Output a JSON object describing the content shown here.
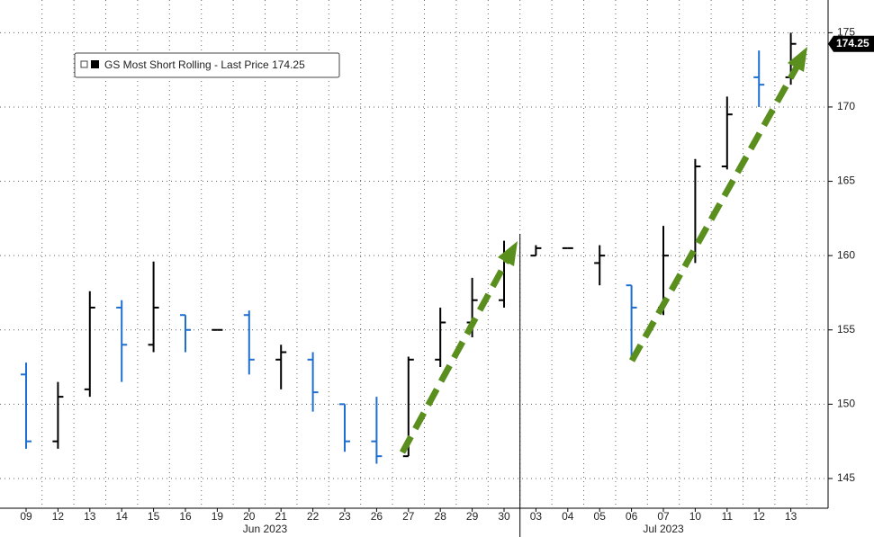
{
  "chart_data": {
    "type": "ohlc",
    "legend": "GS Most Short Rolling - Last Price 174.25",
    "categories": [
      "09",
      "12",
      "13",
      "14",
      "15",
      "16",
      "19",
      "20",
      "21",
      "22",
      "23",
      "26",
      "27",
      "28",
      "29",
      "30",
      "03",
      "04",
      "05",
      "06",
      "07",
      "10",
      "11",
      "12",
      "13"
    ],
    "months": [
      "Jun 2023",
      "Jul 2023"
    ],
    "open": [
      152,
      147.5,
      151,
      156.5,
      154,
      156,
      155,
      156,
      153,
      153,
      150,
      147.5,
      146.5,
      153,
      155.5,
      157,
      160,
      160.5,
      159.5,
      158,
      156.5,
      160,
      166,
      172,
      172
    ],
    "high": [
      152.8,
      151.5,
      157.6,
      157,
      159.6,
      156,
      155,
      156.3,
      154,
      153.5,
      150,
      150.5,
      153.2,
      156.5,
      158.5,
      161,
      160.7,
      160.5,
      160.7,
      158,
      162,
      166.5,
      170.7,
      173.8,
      175
    ],
    "low": [
      147,
      147,
      150.5,
      151.5,
      153.5,
      153.5,
      155,
      152,
      151,
      149.5,
      146.8,
      146,
      146.5,
      152.5,
      154.5,
      156.5,
      160,
      160.5,
      158,
      153,
      156,
      159.5,
      165.8,
      170,
      171.5
    ],
    "close": [
      147.5,
      150.5,
      156.5,
      154,
      156.5,
      155,
      155,
      153,
      153.5,
      150.8,
      147.5,
      146.5,
      153,
      155.5,
      157,
      160,
      160.5,
      160.5,
      160,
      156.5,
      160,
      166,
      169.5,
      171.5,
      174.25
    ],
    "up_color": "#000000",
    "down_color": "#1f6fd1",
    "last_price": 174.25,
    "ylim": [
      143,
      177.2
    ],
    "yticks": [
      145,
      150,
      155,
      160,
      165,
      170,
      175
    ],
    "grid": true
  }
}
